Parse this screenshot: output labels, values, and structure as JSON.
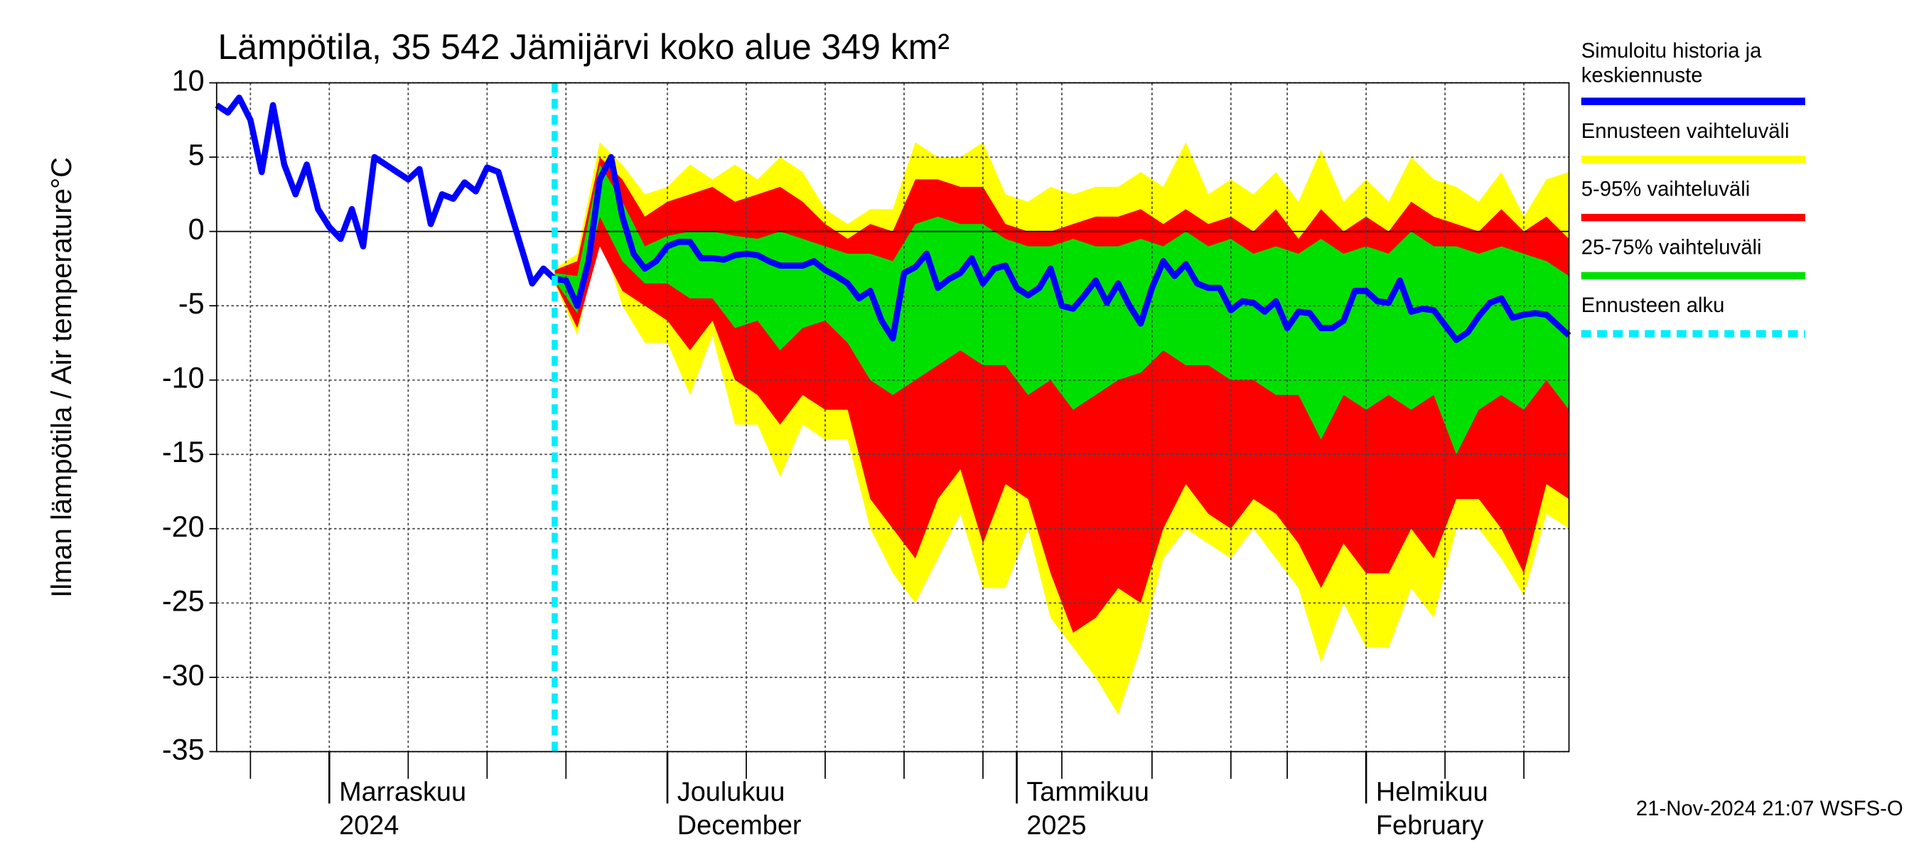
{
  "chart_data": {
    "type": "band-forecast",
    "title": "Lämpötila, 35 542 Jämijärvi koko alue 349 km²",
    "ylabel": "Ilman lämpötila / Air temperature",
    "yunit": "°C",
    "footer": "21-Nov-2024 21:07 WSFS-O",
    "ylim": [
      -35,
      10
    ],
    "yticks": [
      -35,
      -30,
      -25,
      -20,
      -15,
      -10,
      -5,
      0,
      5,
      10
    ],
    "xlim": [
      0,
      120
    ],
    "xticks": [
      {
        "value": 10,
        "label": [
          "Marraskuu",
          "2024"
        ]
      },
      {
        "value": 40,
        "label": [
          "Joulukuu",
          "December"
        ]
      },
      {
        "value": 71,
        "label": [
          "Tammikuu",
          "2025"
        ]
      },
      {
        "value": 102,
        "label": [
          "Helmikuu",
          "February"
        ]
      }
    ],
    "xminor": [
      3,
      17,
      24,
      31,
      47,
      54,
      61,
      68,
      75,
      83,
      90,
      95,
      109,
      116
    ],
    "grid": true,
    "bands": [
      {
        "name": "Ennusteen vaihteluväli",
        "color": "#ffff00",
        "x": [
          30,
          32,
          34,
          36,
          38,
          40,
          42,
          44,
          46,
          48,
          50,
          52,
          54,
          56,
          58,
          60,
          62,
          64,
          66,
          68,
          70,
          72,
          74,
          76,
          78,
          80,
          82,
          84,
          86,
          88,
          90,
          92,
          94,
          96,
          98,
          100,
          102,
          104,
          106,
          108,
          110,
          112,
          114,
          116,
          118,
          120
        ],
        "low": [
          -3.5,
          -7,
          0,
          -5,
          -7.5,
          -7.5,
          -11,
          -7,
          -13,
          -13,
          -16.5,
          -13,
          -14,
          -14,
          -20,
          -23,
          -25,
          -22,
          -19,
          -24,
          -24,
          -20,
          -26,
          -28,
          -30,
          -32.5,
          -28,
          -22,
          -20,
          -21,
          -22,
          -20,
          -22,
          -24,
          -29,
          -25,
          -28,
          -28,
          -24,
          -26,
          -20,
          -20,
          -22,
          -24.5,
          -19,
          -20
        ],
        "high": [
          -2.5,
          -1.5,
          6,
          4.5,
          2.5,
          3,
          4.5,
          3.5,
          4.5,
          3.5,
          5,
          4,
          1.5,
          0.5,
          1.5,
          1.5,
          6,
          5,
          5,
          6,
          2.5,
          2,
          3,
          2.5,
          3,
          3,
          4,
          3,
          6,
          2.5,
          3.5,
          2.5,
          4,
          2,
          5.5,
          2,
          3.5,
          2,
          5,
          3.5,
          3,
          2,
          4,
          1,
          3.5,
          4
        ]
      },
      {
        "name": "5-95% vaihteluväli",
        "color": "#ff0000",
        "x": [
          30,
          32,
          34,
          36,
          38,
          40,
          42,
          44,
          46,
          48,
          50,
          52,
          54,
          56,
          58,
          60,
          62,
          64,
          66,
          68,
          70,
          72,
          74,
          76,
          78,
          80,
          82,
          84,
          86,
          88,
          90,
          92,
          94,
          96,
          98,
          100,
          102,
          104,
          106,
          108,
          110,
          112,
          114,
          116,
          118,
          120
        ],
        "low": [
          -3.4,
          -6.5,
          -1,
          -4,
          -5,
          -6,
          -8,
          -6,
          -10,
          -11,
          -13,
          -11,
          -12,
          -12,
          -18,
          -20,
          -22,
          -18,
          -16,
          -21,
          -17,
          -18,
          -23,
          -27,
          -26,
          -24,
          -25,
          -20,
          -17,
          -19,
          -20,
          -18,
          -19,
          -21,
          -24,
          -21,
          -23,
          -23,
          -20,
          -22,
          -18,
          -18,
          -20,
          -23,
          -17,
          -18
        ],
        "high": [
          -2.6,
          -2,
          5,
          3.5,
          1,
          2,
          2.5,
          3,
          2,
          2.5,
          3,
          2,
          0.5,
          -0.5,
          0.5,
          0,
          3.5,
          3.5,
          3,
          3,
          0.5,
          0,
          0,
          0.5,
          1,
          1,
          1.5,
          0.5,
          1.5,
          0.5,
          1,
          0,
          1.5,
          -0.5,
          1.5,
          0,
          1,
          0,
          2,
          1,
          0.5,
          0,
          1.5,
          0,
          1,
          -0.5
        ]
      },
      {
        "name": "25-75% vaihteluväli",
        "color": "#00e000",
        "x": [
          30,
          32,
          34,
          36,
          38,
          40,
          42,
          44,
          46,
          48,
          50,
          52,
          54,
          56,
          58,
          60,
          62,
          64,
          66,
          68,
          70,
          72,
          74,
          76,
          78,
          80,
          82,
          84,
          86,
          88,
          90,
          92,
          94,
          96,
          98,
          100,
          102,
          104,
          106,
          108,
          110,
          112,
          114,
          116,
          118,
          120
        ],
        "low": [
          -3.3,
          -5.5,
          1,
          -2,
          -3.5,
          -3.5,
          -4.5,
          -4.5,
          -6.5,
          -6,
          -8,
          -6.5,
          -6,
          -7.5,
          -10,
          -11,
          -10,
          -9,
          -8,
          -9,
          -9,
          -11,
          -10,
          -12,
          -11,
          -10,
          -9.5,
          -8,
          -9,
          -9,
          -10,
          -10,
          -11,
          -11,
          -14,
          -11,
          -12,
          -11,
          -12,
          -11,
          -15,
          -12,
          -11,
          -12,
          -10,
          -12
        ],
        "high": [
          -2.8,
          -3,
          4.5,
          2,
          -1,
          -0.3,
          0,
          0,
          -0.3,
          -0.5,
          0,
          -0.5,
          -1,
          -1.5,
          -1.5,
          -2,
          0.5,
          1,
          0.5,
          0.5,
          -0.5,
          -1,
          -1,
          -0.5,
          -1,
          -1,
          -0.5,
          -1,
          0,
          -1,
          -0.5,
          -1.5,
          -1,
          -1.5,
          -0.5,
          -1.5,
          -1,
          -1.5,
          0,
          -1,
          -1,
          -1.5,
          -1,
          -1.5,
          -2,
          -3
        ]
      }
    ],
    "series": [
      {
        "name": [
          "Simuloitu historia ja",
          "keskiennuste"
        ],
        "color": "#0000ff",
        "x": [
          0,
          1,
          2,
          3,
          4,
          5,
          6,
          7,
          8,
          9,
          10,
          11,
          12,
          13,
          14,
          15,
          16,
          17,
          18,
          19,
          20,
          21,
          22,
          23,
          24,
          25,
          26,
          27,
          28,
          29,
          30,
          31,
          32,
          33,
          34,
          35,
          36,
          37,
          38,
          39,
          40,
          41,
          42,
          43,
          44,
          45,
          46,
          47,
          48,
          49,
          50,
          51,
          52,
          53,
          54,
          55,
          56,
          57,
          58,
          59,
          60,
          61,
          62,
          63,
          64,
          65,
          66,
          67,
          68,
          69,
          70,
          71,
          72,
          73,
          74,
          75,
          76,
          77,
          78,
          79,
          80,
          81,
          82,
          83,
          84,
          85,
          86,
          87,
          88,
          89,
          90,
          91,
          92,
          93,
          94,
          95,
          96,
          97,
          98,
          99,
          100,
          101,
          102,
          103,
          104,
          105,
          106,
          107,
          108,
          109,
          110,
          111,
          112,
          113,
          114,
          115,
          116,
          117,
          118,
          119,
          120
        ],
        "values": [
          8.5,
          8,
          9,
          7.5,
          4,
          8.5,
          4.5,
          2.5,
          4.5,
          1.5,
          0.3,
          -0.5,
          1.5,
          -1,
          5,
          4.5,
          4,
          3.5,
          4.2,
          0.5,
          2.5,
          2.2,
          3.3,
          2.7,
          4.3,
          4,
          1.5,
          -1,
          -3.5,
          -2.5,
          -3.2,
          -3.3,
          -5,
          -2,
          3.5,
          5,
          1,
          -1.5,
          -2.5,
          -2,
          -1,
          -0.7,
          -0.7,
          -1.8,
          -1.8,
          -1.9,
          -1.6,
          -1.5,
          -1.6,
          -2,
          -2.3,
          -2.3,
          -2.3,
          -2,
          -2.6,
          -3,
          -3.5,
          -4.5,
          -4,
          -6,
          -7.2,
          -2.8,
          -2.4,
          -1.5,
          -3.8,
          -3.2,
          -2.8,
          -1.8,
          -3.5,
          -2.5,
          -2.3,
          -3.8,
          -4.3,
          -3.8,
          -2.5,
          -5,
          -5.2,
          -4.3,
          -3.3,
          -4.8,
          -3.5,
          -5,
          -6.2,
          -3.8,
          -2,
          -3,
          -2.2,
          -3.5,
          -3.8,
          -3.8,
          -5.3,
          -4.7,
          -4.8,
          -5.4,
          -4.7,
          -6.5,
          -5.4,
          -5.5,
          -6.5,
          -6.5,
          -6,
          -4,
          -4,
          -4.7,
          -4.8,
          -3.3,
          -5.4,
          -5.2,
          -5.3,
          -6.3,
          -7.3,
          -6.8,
          -5.7,
          -4.8,
          -4.5,
          -5.8,
          -5.6,
          -5.5,
          -5.6,
          -6.3,
          -7
        ]
      }
    ],
    "forecast_start": {
      "name": "Ennusteen alku",
      "color": "#00eeff",
      "x": 30
    }
  }
}
